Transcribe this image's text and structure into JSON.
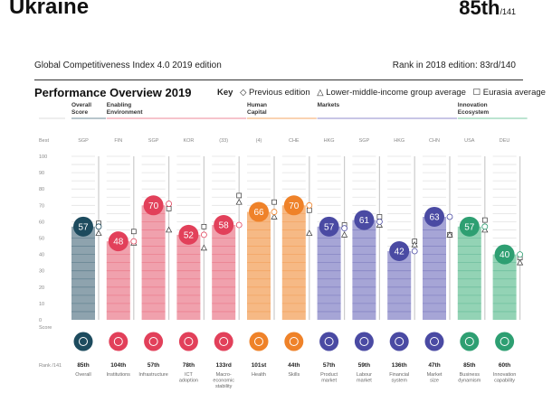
{
  "header": {
    "country": "Ukraine",
    "rank": "85th",
    "rank_total": "/141",
    "edition": "Global Competitiveness Index 4.0 2019 edition",
    "prev_rank": "Rank in 2018 edition: 83rd/140"
  },
  "overview": {
    "title": "Performance Overview 2019",
    "key_label": "Key",
    "key_items": [
      "◇ Previous edition",
      "△ Lower-middle-income group average",
      "☐ Eurasia average"
    ]
  },
  "colors": {
    "overall": "#1d4b5e",
    "enabling": "#e2405a",
    "human": "#ef8229",
    "markets": "#4a4aa3",
    "innovation": "#2e9f72"
  },
  "chart_data": {
    "type": "bar",
    "ylim": [
      0,
      100
    ],
    "yticks": [
      0,
      10,
      20,
      30,
      40,
      50,
      60,
      70,
      80,
      90,
      100
    ],
    "best_label": "Best",
    "score_label": "Score",
    "rank_label": "Rank /141",
    "groups": [
      {
        "name": "Overall Score",
        "key": "overall",
        "span": [
          0,
          0
        ]
      },
      {
        "name": "Enabling Environment",
        "key": "enabling",
        "span": [
          1,
          4
        ]
      },
      {
        "name": "Human Capital",
        "key": "human",
        "span": [
          5,
          6
        ]
      },
      {
        "name": "Markets",
        "key": "markets",
        "span": [
          7,
          10
        ]
      },
      {
        "name": "Innovation Ecosystem",
        "key": "innovation",
        "span": [
          11,
          12
        ]
      }
    ],
    "pillars": [
      {
        "label": "Overall",
        "group": "overall",
        "best": "SGP",
        "score": 57,
        "rank": "85th",
        "prev": 57,
        "group_avg": 53,
        "eurasia": 59
      },
      {
        "label": "Institutions",
        "group": "enabling",
        "best": "FIN",
        "score": 48,
        "rank": "104th",
        "prev": 48,
        "group_avg": 47,
        "eurasia": 54
      },
      {
        "label": "Infrastructure",
        "group": "enabling",
        "best": "SGP",
        "score": 70,
        "rank": "57th",
        "prev": 71,
        "group_avg": 55,
        "eurasia": 68
      },
      {
        "label": "ICT adoption",
        "group": "enabling",
        "best": "KOR",
        "score": 52,
        "rank": "78th",
        "prev": 52,
        "group_avg": 44,
        "eurasia": 57
      },
      {
        "label": "Macro-economic stability",
        "group": "enabling",
        "best": "(33)",
        "score": 58,
        "rank": "133rd",
        "prev": 58,
        "group_avg": 72,
        "eurasia": 76
      },
      {
        "label": "Health",
        "group": "human",
        "best": "(4)",
        "score": 66,
        "rank": "101st",
        "prev": 66,
        "group_avg": 63,
        "eurasia": 72
      },
      {
        "label": "Skills",
        "group": "human",
        "best": "CHE",
        "score": 70,
        "rank": "44th",
        "prev": 70,
        "group_avg": 53,
        "eurasia": 67
      },
      {
        "label": "Product market",
        "group": "markets",
        "best": "HKG",
        "score": 57,
        "rank": "57th",
        "prev": 56,
        "group_avg": 52,
        "eurasia": 58
      },
      {
        "label": "Labour market",
        "group": "markets",
        "best": "SGP",
        "score": 61,
        "rank": "59th",
        "prev": 60,
        "group_avg": 58,
        "eurasia": 63
      },
      {
        "label": "Financial system",
        "group": "markets",
        "best": "HKG",
        "score": 42,
        "rank": "136th",
        "prev": 42,
        "group_avg": 46,
        "eurasia": 48
      },
      {
        "label": "Market size",
        "group": "markets",
        "best": "CHN",
        "score": 63,
        "rank": "47th",
        "prev": 63,
        "group_avg": 52,
        "eurasia": 52
      },
      {
        "label": "Business dynamism",
        "group": "innovation",
        "best": "USA",
        "score": 57,
        "rank": "85th",
        "prev": 57,
        "group_avg": 55,
        "eurasia": 61
      },
      {
        "label": "Innovation capability",
        "group": "innovation",
        "best": "DEU",
        "score": 40,
        "rank": "60th",
        "prev": 40,
        "group_avg": 35,
        "eurasia": 38
      }
    ]
  }
}
